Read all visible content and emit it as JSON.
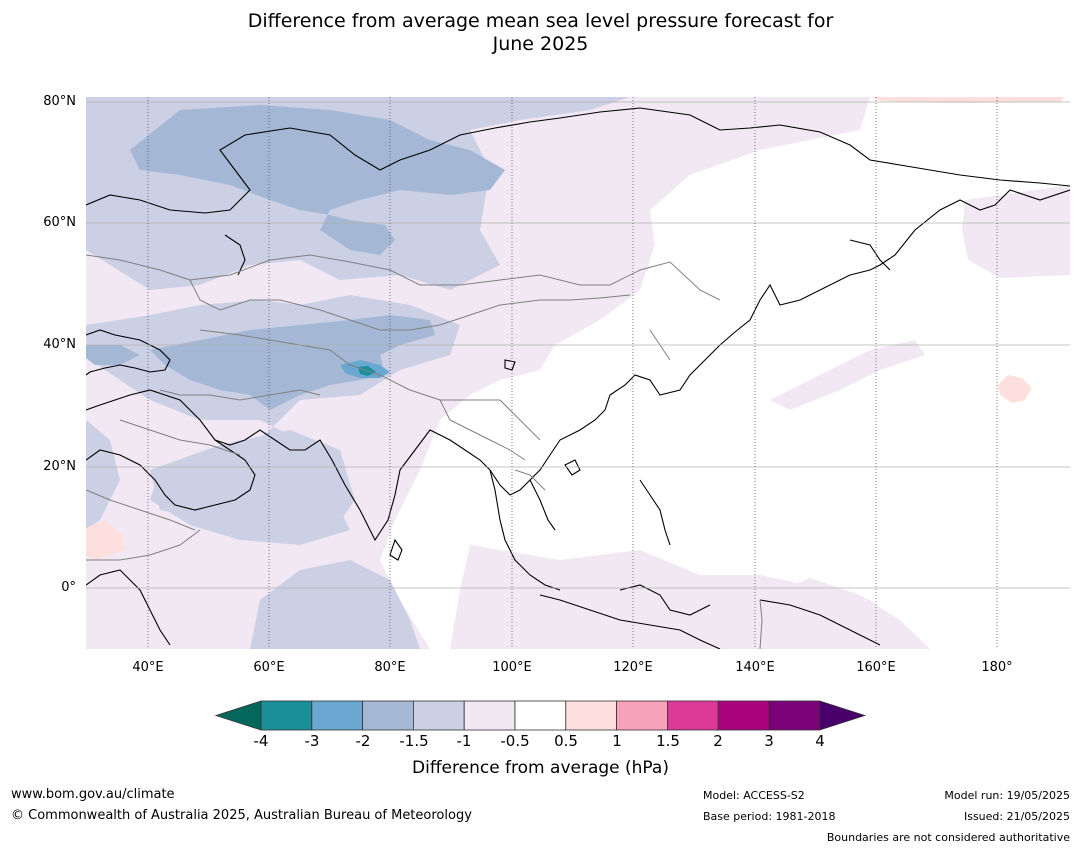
{
  "title": {
    "line1": "Difference from average mean sea level pressure forecast for",
    "line2": "June 2025"
  },
  "axes": {
    "latitude_labels": [
      "80°N",
      "60°N",
      "40°N",
      "20°N",
      "0°"
    ],
    "longitude_labels": [
      "40°E",
      "60°E",
      "80°E",
      "100°E",
      "120°E",
      "140°E",
      "160°E",
      "180°"
    ]
  },
  "colorbar": {
    "title": "Difference from average (hPa)",
    "tick_labels": [
      "-4",
      "-3",
      "-2",
      "-1.5",
      "-1",
      "-0.5",
      "0.5",
      "1",
      "1.5",
      "2",
      "3",
      "4"
    ],
    "colors": [
      "#04675e",
      "#1a8f99",
      "#6aa8d1",
      "#a4b8d6",
      "#ccd0e4",
      "#f1e8f3",
      "#ffffff",
      "#fde0de",
      "#f8a1bb",
      "#db3898",
      "#ab027e",
      "#7a0177",
      "#49006a"
    ]
  },
  "footer": {
    "website": "www.bom.gov.au/climate",
    "copyright": "© Commonwealth of Australia 2025, Australian Bureau of Meteorology",
    "model": "Model: ACCESS-S2",
    "base_period": "Base period: 1981-2018",
    "model_run": "Model run: 19/05/2025",
    "issued": "Issued: 21/05/2025",
    "disclaimer": "Boundaries are not considered authoritative"
  }
}
